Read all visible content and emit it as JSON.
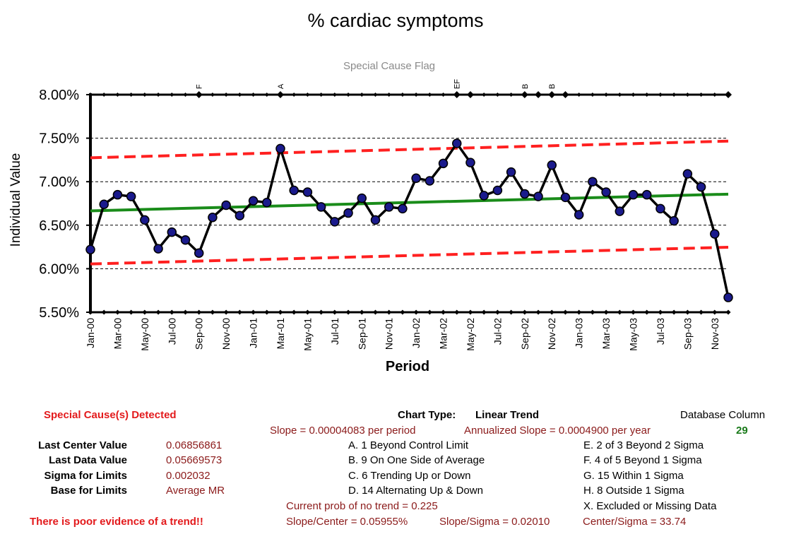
{
  "chart_data": {
    "type": "line",
    "title": "% cardiac symptoms",
    "subtitle": "Special Cause Flag",
    "xlabel": "Period",
    "ylabel": "Individual Value",
    "ylim": [
      0.055,
      0.08
    ],
    "yticks": [
      "8.00%",
      "7.50%",
      "7.00%",
      "6.50%",
      "6.00%",
      "5.50%"
    ],
    "ytick_values": [
      0.08,
      0.075,
      0.07,
      0.065,
      0.06,
      0.055
    ],
    "grid": true,
    "legend": "none",
    "x_tick_labels": [
      "Jan-00",
      "Mar-00",
      "May-00",
      "Jul-00",
      "Sep-00",
      "Nov-00",
      "Jan-01",
      "Mar-01",
      "May-01",
      "Jul-01",
      "Sep-01",
      "Nov-01",
      "Jan-02",
      "Mar-02",
      "May-02",
      "Jul-02",
      "Sep-02",
      "Nov-02",
      "Jan-03",
      "Mar-03",
      "May-03",
      "Jul-03",
      "Sep-03",
      "Nov-03"
    ],
    "periods": 48,
    "series": [
      {
        "values": [
          0.0622,
          0.0674,
          0.0685,
          0.0683,
          0.0656,
          0.0623,
          0.0642,
          0.0633,
          0.0618,
          0.0659,
          0.0673,
          0.0661,
          0.0678,
          0.0676,
          0.0738,
          0.069,
          0.0688,
          0.0671,
          0.0654,
          0.0664,
          0.0681,
          0.0656,
          0.0671,
          0.0669,
          0.0704,
          0.0701,
          0.0721,
          0.0744,
          0.0722,
          0.0684,
          0.069,
          0.0711,
          0.0686,
          0.0683,
          0.0719,
          0.0682,
          0.0662,
          0.07,
          0.0688,
          0.0666,
          0.0685,
          0.0685,
          0.0669,
          0.0655,
          0.0709,
          0.0694,
          0.064,
          0.0567
        ]
      }
    ],
    "center_line": [
      0.06665,
      0.06857
    ],
    "upper_limit": [
      0.07275,
      0.07466
    ],
    "lower_limit": [
      0.06055,
      0.06247
    ],
    "flags": [
      {
        "period": 9,
        "label": "F"
      },
      {
        "period": 15,
        "label": "A"
      },
      {
        "period": 28,
        "label": "EF"
      },
      {
        "period": 29,
        "label": ""
      },
      {
        "period": 33,
        "label": "B"
      },
      {
        "period": 34,
        "label": ""
      },
      {
        "period": 35,
        "label": "B"
      },
      {
        "period": 36,
        "label": ""
      },
      {
        "period": 48,
        "label": ""
      }
    ],
    "colors": {
      "series": "#000000",
      "marker": "#1a1a8c",
      "center": "#1a8c1a",
      "limits": "#ff2020",
      "grid": "#000000"
    }
  },
  "panel": {
    "detected": "Special Cause(s) Detected",
    "chart_type_label": "Chart Type:",
    "chart_type_value": "Linear Trend",
    "db_column_label": "Database Column",
    "db_column_value": "29",
    "slope": "Slope = 0.00004083 per period",
    "annualized_slope": "Annualized Slope = 0.0004900 per year",
    "stats": [
      {
        "label": "Last Center Value",
        "value": "0.06856861"
      },
      {
        "label": "Last Data Value",
        "value": "0.05669573"
      },
      {
        "label": "Sigma for Limits",
        "value": "0.002032"
      },
      {
        "label": "Base for Limits",
        "value": "Average MR"
      }
    ],
    "rules_left": [
      "A.  1 Beyond Control Limit",
      "B.  9 On One Side of Average",
      "C.  6 Trending Up or Down",
      "D.  14 Alternating  Up & Down"
    ],
    "rules_right": [
      "E.  2 of 3 Beyond 2 Sigma",
      "F.  4 of 5 Beyond 1 Sigma",
      "G.  15 Within 1 Sigma",
      "H.  8 Outside 1 Sigma",
      "X.  Excluded or Missing Data"
    ],
    "prob_no_trend": "Current prob of no trend = 0.225",
    "slope_center": "Slope/Center = 0.05955%",
    "slope_sigma": "Slope/Sigma = 0.02010",
    "center_sigma": "Center/Sigma = 33.74",
    "trend_note": "There is poor evidence of a trend!!"
  }
}
